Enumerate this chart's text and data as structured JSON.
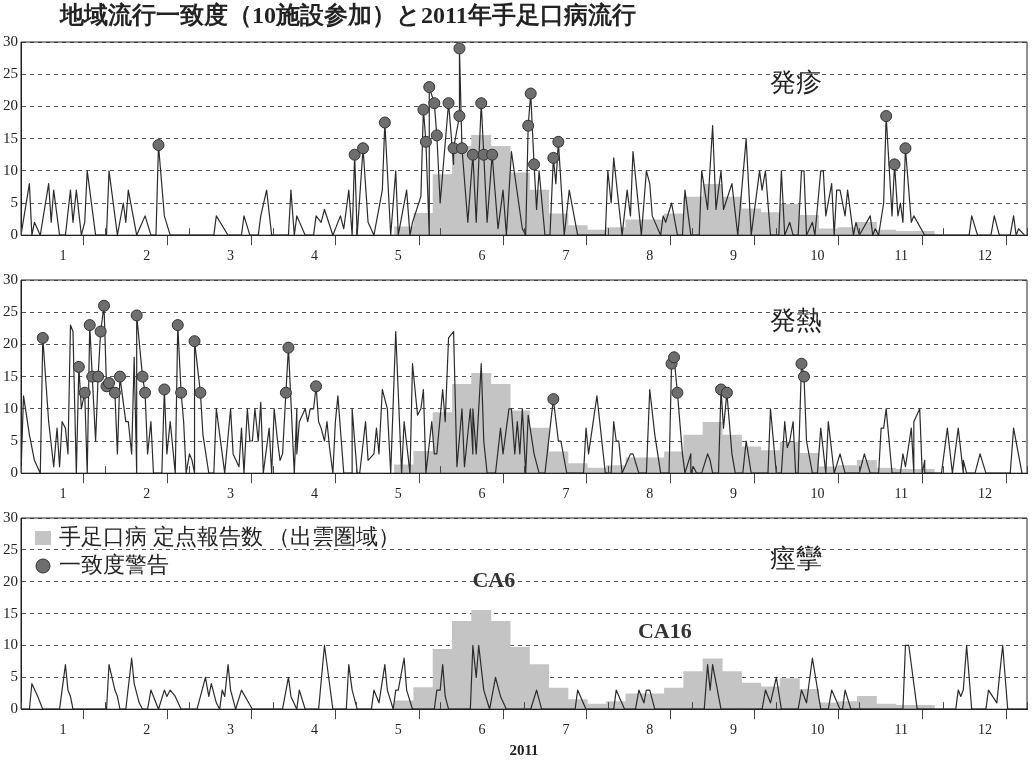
{
  "chart_data": [
    {
      "type": "line",
      "title": "地域流行一致度（10施設参加）と2011年手足口病流行",
      "subtitle": "発疹",
      "xlim": [
        0.5,
        12.5
      ],
      "ylim": [
        0,
        30
      ],
      "xticks": [
        {
          "value": 0.5,
          "label": null
        },
        1,
        {
          "value": 1.5,
          "label": null
        },
        2,
        {
          "value": 2.5,
          "label": null
        },
        3,
        {
          "value": 3.5,
          "label": null
        },
        4,
        {
          "value": 4.5,
          "label": null
        },
        5,
        {
          "value": 5.5,
          "label": null
        },
        6,
        {
          "value": 6.5,
          "label": null
        },
        7,
        {
          "value": 7.5,
          "label": null
        },
        8,
        {
          "value": 8.5,
          "label": null
        },
        9,
        {
          "value": 9.5,
          "label": null
        },
        10,
        {
          "value": 10.5,
          "label": null
        },
        11,
        {
          "value": 11.5,
          "label": null
        },
        12,
        {
          "value": 12.5,
          "label": null
        }
      ],
      "yticks": [
        0,
        5,
        10,
        15,
        20,
        25,
        30
      ],
      "grid": "y",
      "series": [
        {
          "type": "bar",
          "color": "#c4c4c4",
          "x": [
            5.07,
            5.3,
            5.53,
            5.76,
            5.99,
            6.22,
            6.45,
            6.68,
            6.91,
            7.14,
            7.37,
            7.6,
            7.83,
            8.06,
            8.29,
            8.52,
            8.75,
            8.98,
            9.21,
            9.44,
            9.67,
            9.9,
            10.13,
            10.36,
            10.59,
            10.82,
            11.05,
            11.28
          ],
          "values": [
            1.3,
            3.4,
            9.4,
            13.8,
            15.5,
            13.8,
            9.7,
            7,
            3.3,
            1.5,
            0.8,
            1.2,
            2.4,
            2.4,
            3.3,
            5.9,
            7.9,
            5.9,
            4.1,
            3.5,
            4.8,
            3.1,
            1,
            1.2,
            2,
            0.8,
            0.6,
            0.6
          ]
        },
        {
          "color": "#2b2b2b",
          "x": [
            0.5,
            0.6,
            0.63,
            0.66,
            0.73,
            0.83,
            0.86,
            0.89,
            0.96,
            1.03,
            1.09,
            1.12,
            1.16,
            1.22,
            1.26,
            1.29,
            1.39,
            1.52,
            1.55,
            1.65,
            1.72,
            1.75,
            1.78,
            1.88,
            1.98,
            2.05,
            2.11,
            2.14,
            2.21,
            2.28,
            2.8,
            2.83,
            2.97,
            3.13,
            3.16,
            3.23,
            3.33,
            3.36,
            3.43,
            3.49,
            3.69,
            3.72,
            3.76,
            3.79,
            3.89,
            3.99,
            4.02,
            4.08,
            4.12,
            4.22,
            4.31,
            4.35,
            4.41,
            4.45,
            4.48,
            4.51,
            4.58,
            4.64,
            4.71,
            4.81,
            4.84,
            4.91,
            4.97,
            5.0,
            5.1,
            5.14,
            5.17,
            5.27,
            5.3,
            5.33,
            5.37,
            5.37,
            5.43,
            5.46,
            5.5,
            5.6,
            5.66,
            5.66,
            5.73,
            5.73,
            5.76,
            5.83,
            5.89,
            5.93,
            5.99,
            6.02,
            6.06,
            6.12,
            6.19,
            6.25,
            6.29,
            6.35,
            6.48,
            6.52,
            6.55,
            6.58,
            6.62,
            6.65,
            6.68,
            6.75,
            6.81,
            6.85,
            6.88,
            6.91,
            6.98,
            7.04,
            7.14,
            7.47,
            7.5,
            7.54,
            7.57,
            7.67,
            7.73,
            7.77,
            7.8,
            7.9,
            7.96,
            8.0,
            8.03,
            8.13,
            8.16,
            8.19,
            8.26,
            8.33,
            8.39,
            8.42,
            8.49,
            8.59,
            8.62,
            8.69,
            8.75,
            8.79,
            8.85,
            8.88,
            8.98,
            9.05,
            9.15,
            9.21,
            9.31,
            9.34,
            9.38,
            9.44,
            9.54,
            9.57,
            9.61,
            9.67,
            9.71,
            9.77,
            9.81,
            9.84,
            9.87,
            9.94,
            9.97,
            10.04,
            10.07,
            10.1,
            10.17,
            10.2,
            10.23,
            10.27,
            10.33,
            10.36,
            10.43,
            10.46,
            10.5,
            10.63,
            10.66,
            10.69,
            10.73,
            10.79,
            10.82,
            10.89,
            10.92,
            10.96,
            10.99,
            11.02,
            11.05,
            11.12,
            11.15,
            11.28,
            11.81,
            11.84,
            11.91,
            12.07,
            12.11,
            12.17,
            12.3,
            12.34,
            12.37,
            12.4,
            12.47
          ],
          "values": [
            0,
            8,
            0,
            2,
            0,
            8,
            2,
            7,
            0,
            0,
            7,
            2,
            7,
            0,
            2,
            10,
            0,
            0,
            10,
            0,
            5,
            2,
            7,
            0,
            3,
            0,
            0,
            14,
            3,
            0,
            0,
            3,
            0,
            0,
            3,
            0,
            0,
            3,
            7,
            0,
            0,
            7,
            0,
            3,
            0,
            0,
            3,
            2,
            4,
            0,
            3,
            1,
            7,
            0,
            12.5,
            0,
            13.5,
            2,
            0,
            7,
            17.5,
            0,
            10,
            0,
            7,
            0,
            2,
            6,
            19.5,
            14.5,
            0,
            23,
            20.5,
            15.5,
            5,
            20.5,
            11,
            13.5,
            18.5,
            29,
            13.5,
            2,
            12.5,
            2,
            20.5,
            12.5,
            2,
            12.5,
            1,
            7,
            0,
            13,
            1,
            0,
            17,
            22,
            11,
            4,
            10,
            0,
            0,
            12,
            8,
            14.5,
            0,
            7,
            0,
            0,
            10,
            5,
            12,
            0,
            7,
            3,
            13,
            0,
            10,
            8,
            3,
            0,
            3,
            2,
            5,
            0,
            0,
            7,
            0,
            0,
            10,
            4,
            17,
            4,
            10,
            4,
            8,
            0,
            15,
            0,
            10,
            7,
            10,
            0,
            0,
            10,
            0,
            2,
            0,
            0,
            10,
            10,
            0,
            2,
            0,
            10,
            10,
            3,
            8,
            0,
            7,
            7,
            3,
            7,
            0,
            2,
            0,
            3,
            0,
            1,
            0,
            5,
            18.5,
            3,
            11,
            3,
            5,
            2,
            13.5,
            2,
            3,
            0,
            0,
            3,
            0,
            0,
            3,
            0,
            0,
            3,
            0,
            1,
            0
          ]
        },
        {
          "type": "scatter",
          "color": "#6e6e6e",
          "marker": "circle",
          "x": [
            2.14,
            4.48,
            4.58,
            4.84,
            5.3,
            5.33,
            5.37,
            5.43,
            5.46,
            5.6,
            5.66,
            5.73,
            5.73,
            5.76,
            5.89,
            5.99,
            6.02,
            6.12,
            6.55,
            6.58,
            6.62,
            6.85,
            6.91,
            10.82,
            10.92,
            11.05
          ],
          "values": [
            14,
            12.5,
            13.5,
            17.5,
            19.5,
            14.5,
            23,
            20.5,
            15.5,
            20.5,
            13.5,
            18.5,
            29,
            13.5,
            12.5,
            20.5,
            12.5,
            12.5,
            17,
            22,
            11,
            12,
            14.5,
            18.5,
            11,
            13.5
          ]
        }
      ]
    },
    {
      "type": "line",
      "title": "発熱",
      "xlim": [
        0.5,
        12.5
      ],
      "ylim": [
        0,
        30
      ],
      "xticks": [
        {
          "value": 0.5,
          "label": null
        },
        1,
        {
          "value": 1.5,
          "label": null
        },
        2,
        {
          "value": 2.5,
          "label": null
        },
        3,
        {
          "value": 3.5,
          "label": null
        },
        4,
        {
          "value": 4.5,
          "label": null
        },
        5,
        {
          "value": 5.5,
          "label": null
        },
        6,
        {
          "value": 6.5,
          "label": null
        },
        7,
        {
          "value": 7.5,
          "label": null
        },
        8,
        {
          "value": 8.5,
          "label": null
        },
        9,
        {
          "value": 9.5,
          "label": null
        },
        10,
        {
          "value": 10.5,
          "label": null
        },
        11,
        {
          "value": 11.5,
          "label": null
        },
        12,
        {
          "value": 12.5,
          "label": null
        }
      ],
      "yticks": [
        0,
        5,
        10,
        15,
        20,
        25,
        30
      ],
      "grid": "y",
      "series": [
        {
          "type": "bar",
          "color": "#c4c4c4",
          "x": [
            5.07,
            5.3,
            5.53,
            5.76,
            5.99,
            6.22,
            6.45,
            6.68,
            6.91,
            7.14,
            7.37,
            7.6,
            7.83,
            8.06,
            8.29,
            8.52,
            8.75,
            8.98,
            9.21,
            9.44,
            9.67,
            9.9,
            10.13,
            10.36,
            10.59,
            10.82,
            11.05,
            11.28
          ],
          "values": [
            1.3,
            3.4,
            9.4,
            13.8,
            15.5,
            13.8,
            9.7,
            7,
            3.3,
            1.5,
            0.8,
            1.2,
            2.4,
            2.4,
            3.3,
            5.9,
            7.9,
            5.9,
            4.1,
            3.5,
            4.8,
            3.1,
            1,
            1.2,
            2,
            0.8,
            0.6,
            0.6
          ]
        },
        {
          "color": "#2b2b2b",
          "x": [
            0.5,
            0.53,
            0.6,
            0.66,
            0.73,
            0.76,
            0.83,
            0.89,
            0.93,
            0.96,
            0.99,
            1.03,
            1.06,
            1.09,
            1.12,
            1.16,
            1.19,
            1.22,
            1.26,
            1.29,
            1.32,
            1.35,
            1.39,
            1.42,
            1.45,
            1.49,
            1.52,
            1.55,
            1.59,
            1.62,
            1.65,
            1.68,
            1.75,
            1.78,
            1.82,
            1.85,
            1.88,
            1.88,
            1.95,
            1.98,
            2.01,
            2.05,
            2.08,
            2.18,
            2.21,
            2.24,
            2.28,
            2.34,
            2.37,
            2.41,
            2.44,
            2.47,
            2.51,
            2.54,
            2.57,
            2.57,
            2.64,
            2.67,
            2.74,
            2.8,
            2.83,
            2.93,
            3.0,
            3.03,
            3.1,
            3.13,
            3.16,
            3.2,
            3.23,
            3.26,
            3.29,
            3.33,
            3.36,
            3.39,
            3.46,
            3.49,
            3.52,
            3.56,
            3.59,
            3.62,
            3.66,
            3.69,
            3.76,
            3.79,
            3.79,
            3.82,
            3.89,
            3.92,
            3.95,
            3.99,
            4.02,
            4.05,
            4.08,
            4.12,
            4.15,
            4.18,
            4.22,
            4.25,
            4.28,
            4.35,
            4.45,
            4.45,
            4.51,
            4.54,
            4.61,
            4.64,
            4.71,
            4.74,
            4.77,
            4.81,
            4.87,
            4.91,
            4.97,
            5.04,
            5.07,
            5.14,
            5.17,
            5.23,
            5.27,
            5.3,
            5.33,
            5.4,
            5.43,
            5.46,
            5.53,
            5.56,
            5.6,
            5.66,
            5.7,
            5.76,
            5.79,
            5.86,
            5.89,
            5.89,
            5.93,
            5.99,
            6.02,
            6.06,
            6.16,
            6.22,
            6.25,
            6.32,
            6.35,
            6.39,
            6.42,
            6.45,
            6.48,
            6.52,
            6.55,
            6.62,
            6.68,
            6.75,
            6.85,
            6.91,
            6.94,
            7.01,
            7.21,
            7.24,
            7.27,
            7.37,
            7.47,
            7.54,
            7.57,
            7.6,
            7.63,
            7.67,
            7.77,
            7.8,
            7.87,
            7.96,
            8.0,
            8.06,
            8.13,
            8.23,
            8.26,
            8.29,
            8.33,
            8.39,
            8.42,
            8.49,
            8.49,
            8.52,
            8.56,
            8.62,
            8.69,
            8.72,
            8.75,
            8.82,
            8.85,
            8.88,
            8.92,
            8.98,
            9.02,
            9.11,
            9.15,
            9.21,
            9.41,
            9.44,
            9.51,
            9.57,
            9.61,
            9.64,
            9.67,
            9.71,
            9.74,
            9.77,
            9.81,
            9.84,
            9.87,
            9.94,
            10.0,
            10.04,
            10.1,
            10.13,
            10.2,
            10.27,
            10.33,
            10.5,
            10.56,
            10.63,
            10.73,
            10.76,
            10.79,
            10.82,
            10.89,
            10.99,
            11.02,
            11.05,
            11.12,
            11.15,
            11.15,
            11.22,
            11.25,
            11.28,
            11.28,
            11.48,
            11.55,
            11.61,
            11.68,
            11.74,
            11.74,
            11.78,
            11.88,
            11.94,
            12.01,
            12.3,
            12.34,
            12.44
          ],
          "values": [
            0,
            12,
            6,
            2,
            0,
            21,
            8,
            1,
            7,
            1,
            8,
            7,
            3,
            23,
            22,
            0,
            16.5,
            10,
            12.5,
            0,
            23,
            15,
            5,
            15,
            22,
            26,
            13.5,
            14,
            13.5,
            12.5,
            3,
            15,
            8,
            8,
            3,
            18,
            0,
            24.5,
            15,
            12.5,
            3,
            8,
            0,
            0,
            13,
            3,
            8,
            0,
            23,
            12.5,
            8,
            0,
            3,
            2,
            0,
            20.5,
            12.5,
            6,
            0,
            0,
            10,
            0,
            10,
            3,
            1,
            7,
            0,
            10,
            5,
            5,
            10,
            5,
            11,
            0,
            7,
            0,
            10,
            5,
            2,
            3,
            12.5,
            19.5,
            0,
            10,
            3,
            8,
            10,
            8,
            10,
            10,
            13.5,
            8,
            7,
            5,
            8,
            4,
            0,
            8,
            12,
            0,
            0,
            10,
            0,
            0,
            8,
            2,
            3,
            7,
            3,
            13,
            10,
            0,
            22,
            0,
            8,
            0,
            17,
            9,
            10,
            13,
            0,
            8,
            3,
            3,
            13,
            8,
            21,
            22,
            1,
            10,
            1,
            10,
            3,
            10,
            3,
            17,
            5,
            0,
            0,
            7,
            3,
            10,
            10,
            3,
            8,
            3,
            10,
            0,
            9,
            3,
            0,
            0,
            11.5,
            5,
            5,
            0,
            0,
            7,
            3,
            12,
            0,
            0,
            8,
            5,
            5,
            0,
            3,
            3,
            0,
            0,
            13,
            6,
            0,
            0,
            17,
            18,
            12.5,
            3,
            0,
            3,
            0,
            1,
            0,
            0,
            3,
            2,
            0,
            0,
            13,
            7,
            12.5,
            3,
            0,
            0,
            5,
            0,
            0,
            10,
            0,
            0,
            8,
            4,
            5,
            8,
            0,
            0,
            17,
            15,
            5,
            0,
            0,
            7,
            0,
            8,
            0,
            3,
            0,
            0,
            3,
            0,
            0,
            7,
            7,
            10,
            0,
            0,
            3,
            1,
            7,
            0,
            8,
            10,
            0,
            2,
            0,
            0,
            7,
            0,
            7,
            0,
            2,
            0,
            0,
            3,
            0,
            0,
            7,
            0
          ]
        },
        {
          "type": "scatter",
          "color": "#6e6e6e",
          "marker": "circle",
          "x": [
            0.76,
            1.19,
            1.26,
            1.32,
            1.35,
            1.42,
            1.45,
            1.49,
            1.52,
            1.55,
            1.62,
            1.68,
            1.88,
            1.95,
            1.98,
            2.21,
            2.37,
            2.41,
            2.57,
            2.64,
            3.66,
            3.69,
            4.02,
            6.85,
            8.26,
            8.29,
            8.33,
            8.85,
            8.92,
            9.81,
            9.84
          ],
          "values": [
            21,
            16.5,
            12.5,
            23,
            15,
            15,
            22,
            26,
            13.5,
            14,
            12.5,
            15,
            24.5,
            15,
            12.5,
            13,
            23,
            12.5,
            20.5,
            12.5,
            12.5,
            19.5,
            13.5,
            11.5,
            17,
            18,
            12.5,
            13,
            12.5,
            17,
            15
          ]
        }
      ]
    },
    {
      "type": "line",
      "title": "痙攣",
      "xlabel": "2011",
      "legend": "top left",
      "annotations": [
        "CA6",
        "CA16"
      ],
      "xlim": [
        0.5,
        12.5
      ],
      "ylim": [
        0,
        30
      ],
      "xticks": [
        {
          "value": 0.5,
          "label": null
        },
        1,
        {
          "value": 1.5,
          "label": null
        },
        2,
        {
          "value": 2.5,
          "label": null
        },
        3,
        {
          "value": 3.5,
          "label": null
        },
        4,
        {
          "value": 4.5,
          "label": null
        },
        5,
        {
          "value": 5.5,
          "label": null
        },
        6,
        {
          "value": 6.5,
          "label": null
        },
        7,
        {
          "value": 7.5,
          "label": null
        },
        8,
        {
          "value": 8.5,
          "label": null
        },
        9,
        {
          "value": 9.5,
          "label": null
        },
        10,
        {
          "value": 10.5,
          "label": null
        },
        11,
        {
          "value": 11.5,
          "label": null
        },
        12,
        {
          "value": 12.5,
          "label": null
        }
      ],
      "yticks": [
        0,
        5,
        10,
        15,
        20,
        25,
        30
      ],
      "grid": "y",
      "series": [
        {
          "type": "bar",
          "name": "手足口病 定点報告数 （出雲圏域）",
          "color": "#c4c4c4",
          "x": [
            5.07,
            5.3,
            5.53,
            5.76,
            5.99,
            6.22,
            6.45,
            6.68,
            6.91,
            7.14,
            7.37,
            7.6,
            7.83,
            8.06,
            8.29,
            8.52,
            8.75,
            8.98,
            9.21,
            9.44,
            9.67,
            9.9,
            10.13,
            10.36,
            10.59,
            10.82,
            11.05,
            11.28
          ],
          "values": [
            1.3,
            3.4,
            9.4,
            13.8,
            15.5,
            13.8,
            9.7,
            7,
            3.3,
            1.5,
            0.8,
            1.2,
            2.4,
            2.4,
            3.3,
            5.9,
            7.9,
            5.9,
            4.1,
            3.5,
            4.8,
            3.1,
            1,
            1.2,
            2,
            0.8,
            0.6,
            0.6
          ]
        },
        {
          "color": "#2b2b2b",
          "x": [
            0.5,
            0.6,
            0.63,
            0.7,
            0.76,
            0.96,
            1.03,
            1.06,
            1.09,
            1.12,
            1.52,
            1.55,
            1.62,
            1.65,
            1.68,
            1.75,
            1.82,
            1.85,
            1.91,
            1.95,
            2.01,
            2.05,
            2.14,
            2.21,
            2.24,
            2.28,
            2.34,
            2.41,
            2.6,
            2.7,
            2.74,
            2.77,
            2.83,
            2.87,
            2.9,
            2.93,
            2.97,
            3.0,
            3.06,
            3.13,
            3.26,
            3.62,
            3.69,
            3.72,
            3.79,
            3.82,
            3.89,
            4.05,
            4.12,
            4.18,
            4.22,
            4.38,
            4.41,
            4.45,
            4.51,
            4.68,
            4.71,
            4.77,
            4.84,
            4.87,
            4.94,
            4.97,
            5.0,
            5.07,
            5.1,
            5.17,
            5.43,
            5.46,
            5.5,
            5.53,
            5.56,
            5.6,
            5.86,
            5.89,
            5.93,
            5.96,
            6.02,
            6.09,
            6.16,
            6.22,
            6.29,
            6.58,
            6.65,
            6.71,
            7.11,
            7.14,
            7.24,
            7.57,
            7.6,
            7.7,
            7.83,
            7.87,
            7.93,
            7.96,
            8.0,
            8.06,
            8.65,
            8.69,
            8.72,
            8.75,
            8.85,
            9.34,
            9.38,
            9.44,
            9.51,
            9.57,
            9.77,
            9.81,
            9.87,
            9.94,
            10.04,
            10.13,
            10.17,
            10.27,
            10.3,
            10.33,
            10.4,
            11.02,
            11.05,
            11.09,
            11.19,
            11.65,
            11.68,
            11.71,
            11.74,
            11.78,
            11.84,
            12.01,
            12.04,
            12.14,
            12.17,
            12.21,
            12.27,
            12.5
          ],
          "values": [
            0,
            0,
            4,
            2,
            0,
            0,
            7,
            3,
            2,
            0,
            0,
            7,
            3,
            2,
            0,
            0,
            8,
            4,
            1,
            0,
            0,
            3,
            0,
            3,
            2,
            3,
            2,
            0,
            0,
            5,
            2,
            4,
            1,
            0,
            3,
            2,
            7,
            3,
            0,
            3,
            0,
            0,
            5,
            2,
            0,
            3,
            0,
            0,
            10,
            4,
            0,
            0,
            7,
            3,
            0,
            0,
            3,
            1,
            7,
            3,
            0,
            3,
            3,
            8,
            3,
            0,
            0,
            3,
            3,
            7,
            2,
            0,
            0,
            10,
            5,
            10,
            3,
            0,
            5,
            2,
            0,
            0,
            3,
            0,
            0,
            3,
            0,
            0,
            3,
            0,
            0,
            3,
            1,
            3,
            3,
            0,
            0,
            7,
            3,
            7,
            0,
            0,
            3,
            1,
            5,
            0,
            0,
            3,
            1,
            8,
            0,
            0,
            3,
            0,
            0,
            3,
            0,
            0,
            10,
            10,
            0,
            0,
            3,
            2,
            3,
            10,
            0,
            0,
            3,
            1,
            5,
            10,
            0,
            0
          ]
        },
        {
          "type": "scatter",
          "name": "一致度警告",
          "color": "#6e6e6e",
          "marker": "circle"
        }
      ]
    }
  ]
}
